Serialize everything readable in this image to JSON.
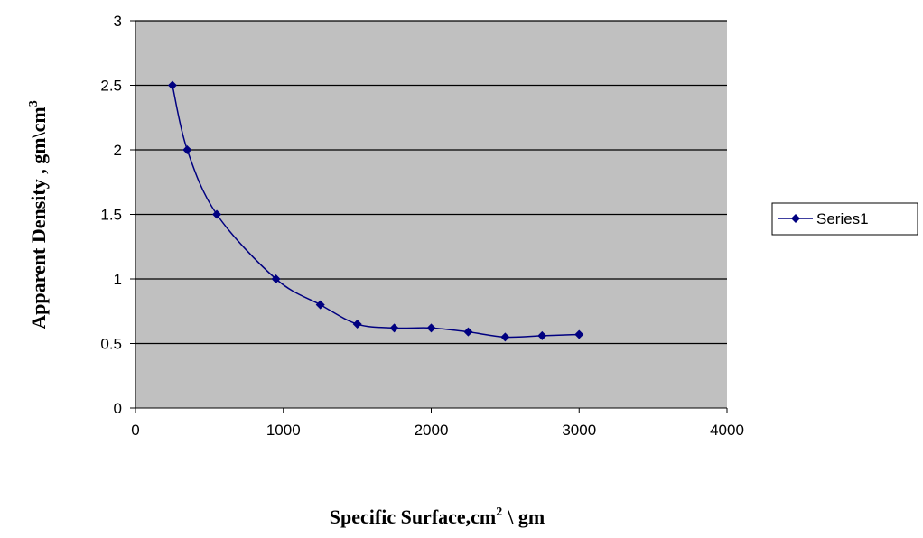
{
  "chart_data": {
    "type": "scatter",
    "title": "",
    "xlabel": {
      "main": "Specific Surface,cm",
      "sup": "2",
      "tail": "\\ gm"
    },
    "ylabel": {
      "main": "Apparent Density , gm\\cm",
      "sup": "3"
    },
    "xlim": [
      0,
      4000
    ],
    "ylim": [
      0,
      3
    ],
    "xticks": [
      "0",
      "1000",
      "2000",
      "3000",
      "4000"
    ],
    "yticks": [
      "0",
      "0.5",
      "1",
      "1.5",
      "2",
      "2.5",
      "3"
    ],
    "grid": "horizontal",
    "legend_position": "right",
    "series": [
      {
        "name": "Series1",
        "color": "#000080",
        "marker": "diamond",
        "smooth": true,
        "x": [
          250,
          350,
          550,
          950,
          1250,
          1500,
          1750,
          2000,
          2250,
          2500,
          2750,
          3000
        ],
        "y": [
          2.5,
          2.0,
          1.5,
          1.0,
          0.8,
          0.65,
          0.62,
          0.62,
          0.59,
          0.55,
          0.56,
          0.57
        ]
      }
    ],
    "colors": {
      "plot_bg": "#c0c0c0",
      "grid": "#000000",
      "series": "#000080"
    }
  }
}
